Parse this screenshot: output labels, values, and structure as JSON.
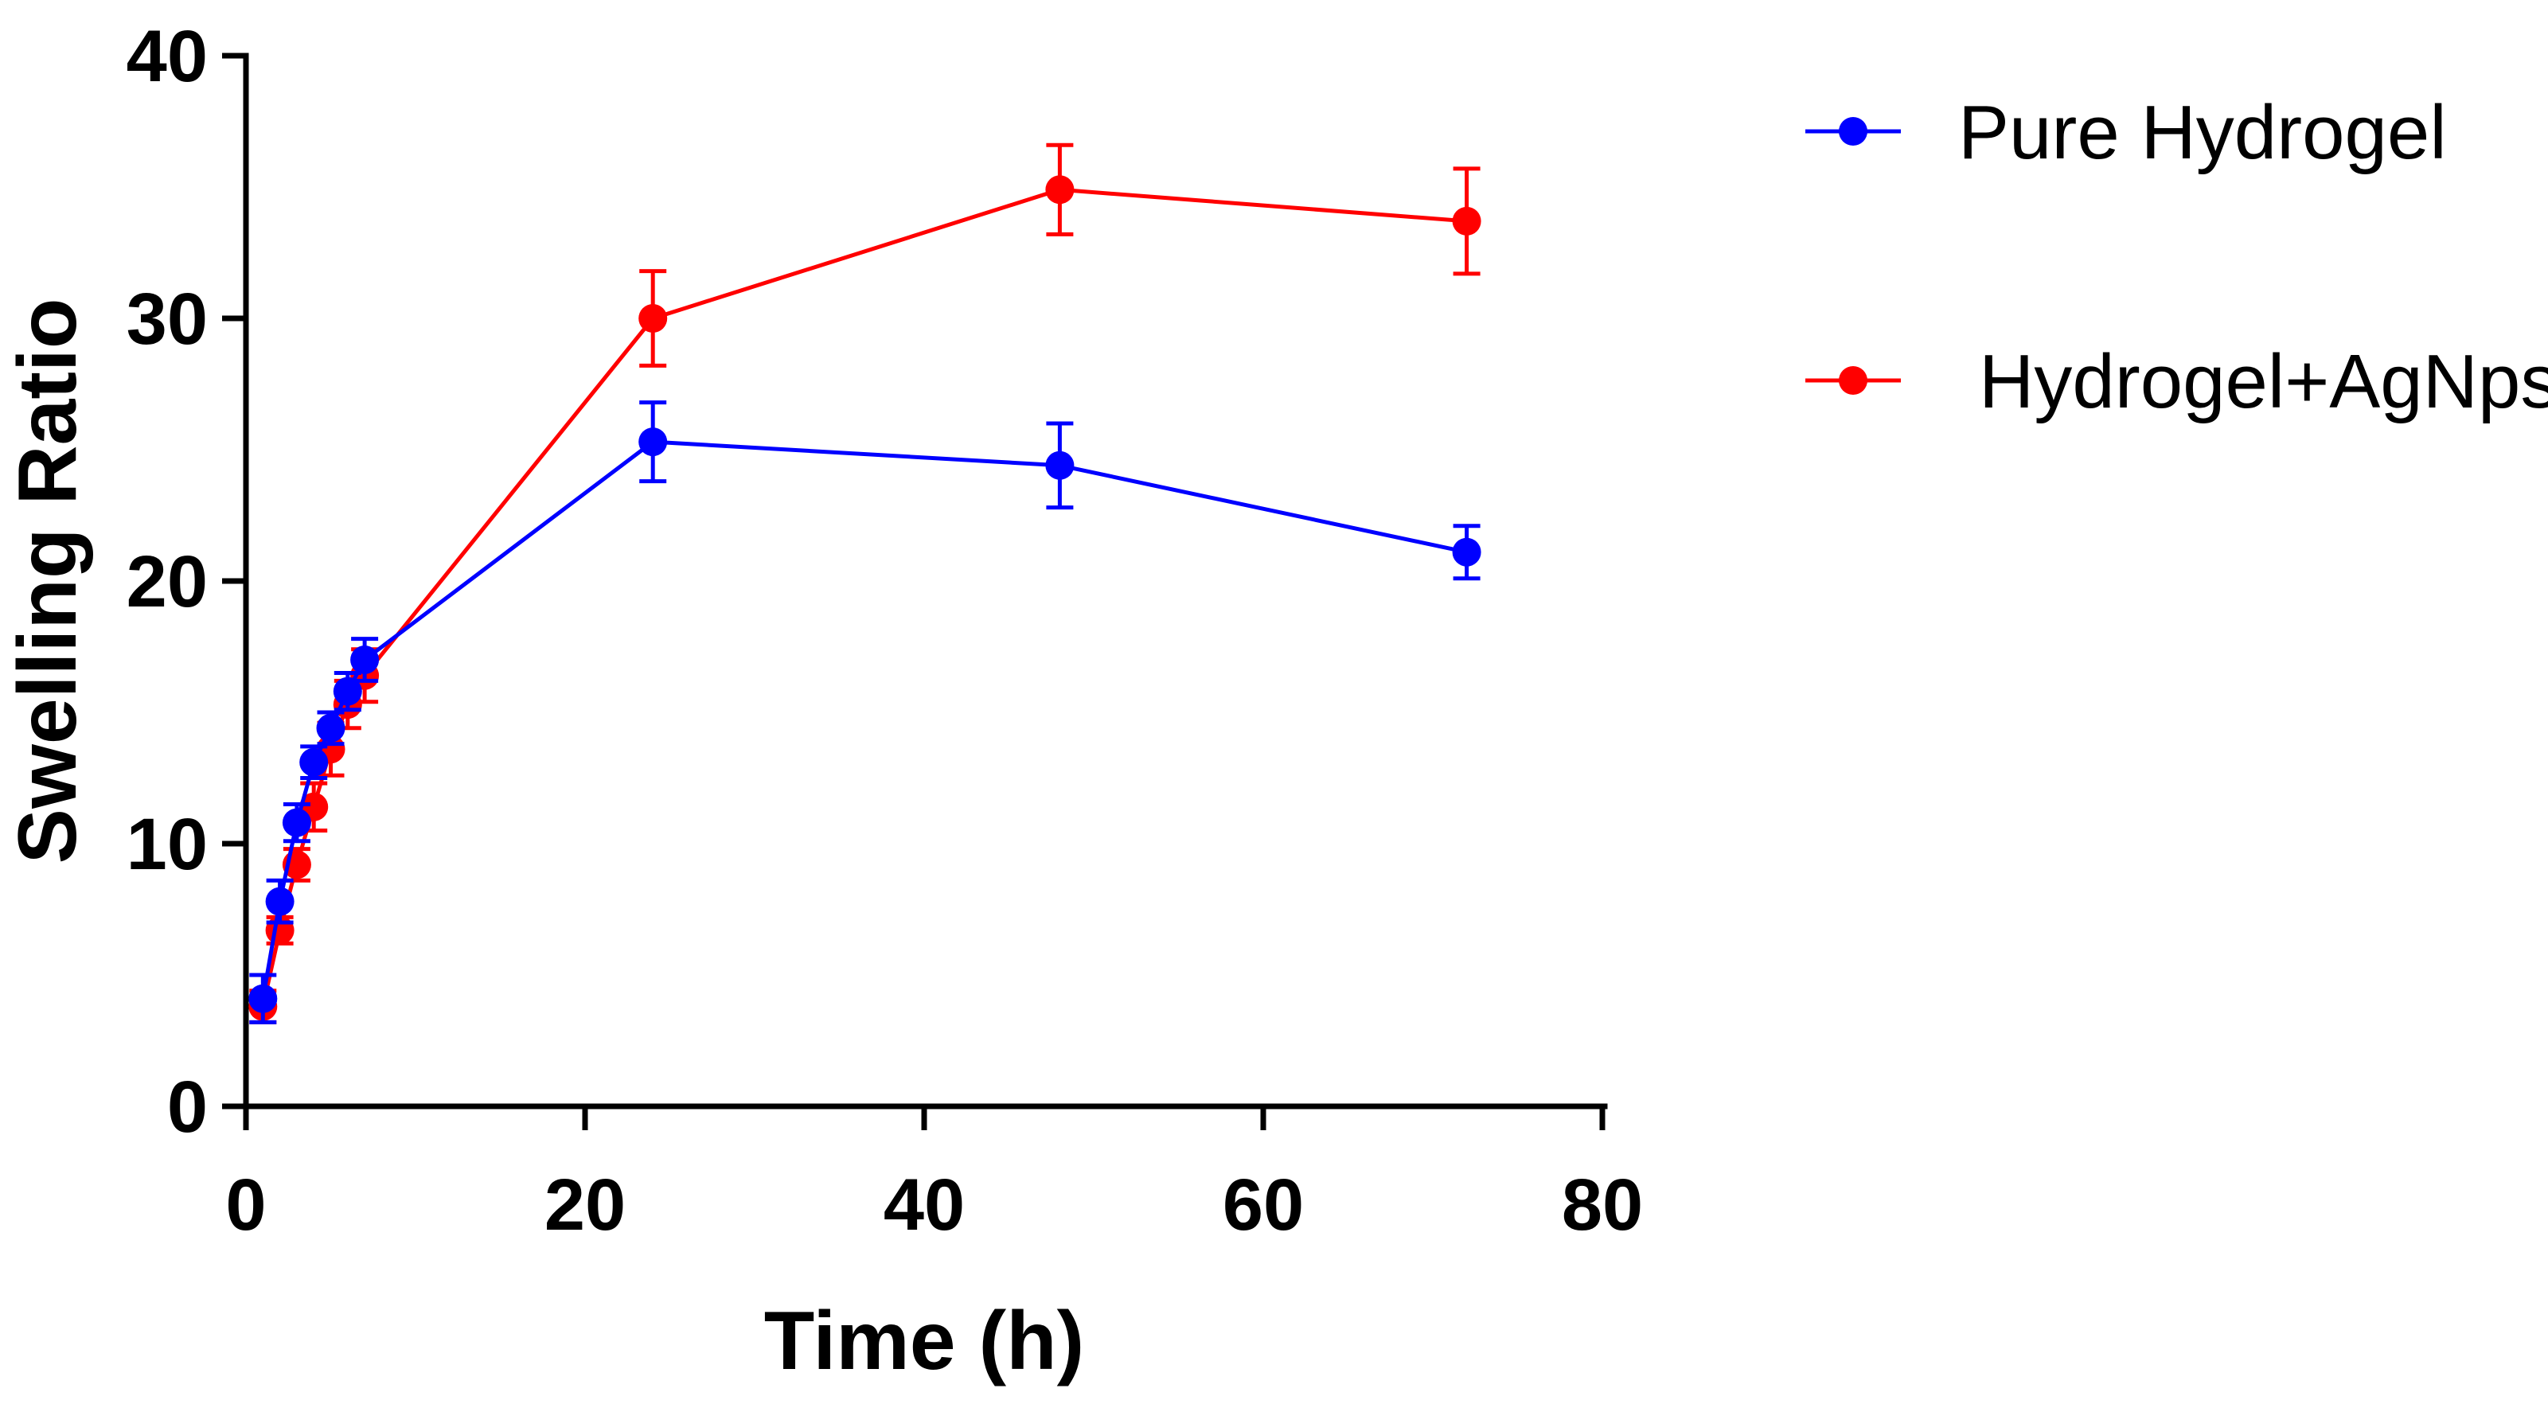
{
  "chart_data": {
    "type": "line",
    "title": "",
    "xlabel": "Time (h)",
    "ylabel": "Swelling Ratio",
    "xlim": [
      0,
      80
    ],
    "ylim": [
      0,
      40
    ],
    "xticks": [
      0,
      20,
      40,
      60,
      80
    ],
    "yticks": [
      0,
      10,
      20,
      30,
      40
    ],
    "grid": false,
    "legend_position": "top-right",
    "series": [
      {
        "name": "Pure Hydrogel",
        "color": "#0000ff",
        "x": [
          1,
          2,
          3,
          4,
          5,
          6,
          7,
          24,
          48,
          72
        ],
        "y": [
          4.1,
          7.8,
          10.8,
          13.1,
          14.4,
          15.8,
          17.0,
          25.3,
          24.4,
          21.1
        ],
        "error": [
          0.9,
          0.8,
          0.7,
          0.6,
          0.6,
          0.7,
          0.8,
          1.5,
          1.6,
          1.0
        ]
      },
      {
        "name": "Hydrogel+AgNps",
        "color": "#ff0000",
        "x": [
          1,
          2,
          3,
          4,
          5,
          6,
          7,
          24,
          48,
          72
        ],
        "y": [
          3.8,
          6.7,
          9.2,
          11.4,
          13.6,
          15.3,
          16.4,
          30.0,
          34.9,
          33.7
        ],
        "error": [
          0.6,
          0.5,
          0.6,
          0.9,
          1.0,
          0.9,
          1.0,
          1.8,
          1.7,
          2.0
        ]
      }
    ]
  }
}
